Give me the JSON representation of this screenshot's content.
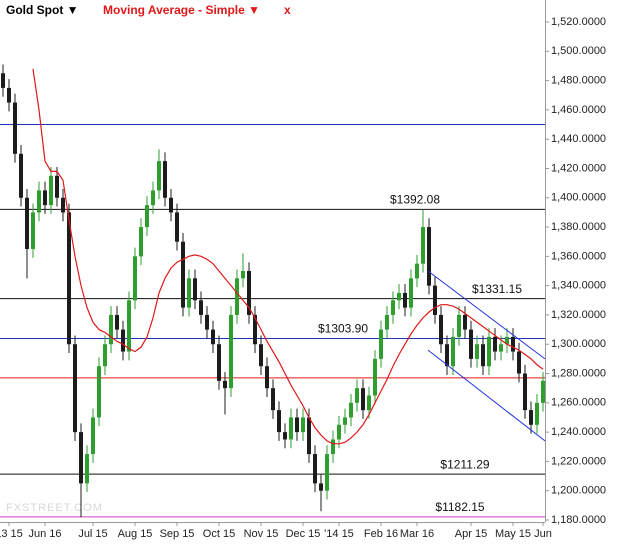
{
  "chart_data": {
    "type": "candlestick",
    "legend": [
      {
        "name": "Gold Spot ▼",
        "color": "#000000"
      },
      {
        "name": "Moving Average - Simple ▼",
        "color": "#e01818"
      },
      {
        "name": "x",
        "color": "#e01818"
      }
    ],
    "watermark": "FXSTREET.COM",
    "categories": [
      null,
      "13 15",
      null,
      null,
      null,
      null,
      null,
      "Jun 16",
      null,
      null,
      null,
      null,
      null,
      null,
      null,
      "Jul 15",
      null,
      null,
      null,
      null,
      null,
      null,
      "Aug 15",
      null,
      null,
      null,
      null,
      null,
      null,
      "Sep 15",
      null,
      null,
      null,
      null,
      null,
      null,
      "Oct 15",
      null,
      null,
      null,
      null,
      null,
      null,
      "Nov 15",
      null,
      null,
      null,
      null,
      null,
      null,
      "Dec 15",
      null,
      null,
      null,
      null,
      null,
      "'14 15",
      null,
      null,
      null,
      null,
      null,
      null,
      "Feb 16",
      null,
      null,
      null,
      null,
      null,
      "Mar 16",
      null,
      null,
      null,
      null,
      null,
      null,
      null,
      null,
      "Apr 15",
      null,
      null,
      null,
      null,
      null,
      null,
      "May 15",
      null,
      null,
      null,
      null,
      "Jun"
    ],
    "open": [
      1485,
      1475,
      1465,
      1430,
      1400,
      1365,
      1390,
      1405,
      1395,
      1415,
      1400,
      1390,
      1300,
      1240,
      1205,
      1225,
      1250,
      1285,
      1300,
      1320,
      1310,
      1295,
      1330,
      1360,
      1380,
      1395,
      1405,
      1425,
      1400,
      1390,
      1370,
      1325,
      1345,
      1330,
      1320,
      1310,
      1300,
      1275,
      1270,
      1320,
      1345,
      1350,
      1320,
      1300,
      1285,
      1270,
      1255,
      1240,
      1235,
      1250,
      1240,
      1250,
      1225,
      1205,
      1200,
      1225,
      1235,
      1245,
      1250,
      1260,
      1270,
      1255,
      1265,
      1290,
      1310,
      1320,
      1330,
      1335,
      1325,
      1345,
      1355,
      1380,
      1340,
      1320,
      1300,
      1285,
      1305,
      1320,
      1310,
      1290,
      1300,
      1285,
      1305,
      1295,
      1300,
      1305,
      1295,
      1280,
      1255,
      1245,
      1260
    ],
    "high": [
      1491,
      1481,
      1471,
      1436,
      1406,
      1396,
      1411,
      1411,
      1421,
      1421,
      1406,
      1396,
      1306,
      1246,
      1231,
      1256,
      1291,
      1306,
      1326,
      1326,
      1316,
      1336,
      1366,
      1386,
      1401,
      1411,
      1433,
      1431,
      1406,
      1396,
      1376,
      1351,
      1351,
      1336,
      1326,
      1316,
      1306,
      1281,
      1326,
      1351,
      1362,
      1356,
      1326,
      1306,
      1291,
      1276,
      1261,
      1246,
      1256,
      1256,
      1256,
      1256,
      1231,
      1211,
      1231,
      1241,
      1251,
      1256,
      1266,
      1276,
      1276,
      1271,
      1296,
      1316,
      1326,
      1336,
      1341,
      1341,
      1351,
      1361,
      1392,
      1386,
      1346,
      1326,
      1306,
      1311,
      1326,
      1326,
      1316,
      1306,
      1306,
      1311,
      1311,
      1306,
      1311,
      1311,
      1301,
      1286,
      1261,
      1266,
      1281
    ],
    "low": [
      1469,
      1459,
      1424,
      1394,
      1345,
      1359,
      1384,
      1389,
      1389,
      1394,
      1384,
      1294,
      1234,
      1182,
      1199,
      1219,
      1244,
      1279,
      1294,
      1304,
      1289,
      1289,
      1324,
      1354,
      1374,
      1389,
      1399,
      1394,
      1384,
      1364,
      1319,
      1319,
      1324,
      1314,
      1304,
      1294,
      1269,
      1252,
      1264,
      1314,
      1339,
      1314,
      1294,
      1279,
      1264,
      1249,
      1234,
      1229,
      1229,
      1234,
      1234,
      1219,
      1199,
      1186,
      1194,
      1219,
      1229,
      1239,
      1244,
      1254,
      1249,
      1249,
      1259,
      1284,
      1304,
      1314,
      1324,
      1319,
      1319,
      1339,
      1349,
      1334,
      1314,
      1294,
      1279,
      1279,
      1299,
      1304,
      1284,
      1284,
      1279,
      1279,
      1289,
      1289,
      1294,
      1289,
      1274,
      1249,
      1239,
      1239,
      1254
    ],
    "close": [
      1475,
      1465,
      1430,
      1400,
      1365,
      1390,
      1405,
      1395,
      1415,
      1400,
      1390,
      1300,
      1240,
      1205,
      1225,
      1250,
      1285,
      1300,
      1320,
      1310,
      1295,
      1330,
      1360,
      1380,
      1395,
      1405,
      1425,
      1400,
      1390,
      1370,
      1325,
      1345,
      1330,
      1320,
      1310,
      1300,
      1275,
      1270,
      1320,
      1345,
      1350,
      1320,
      1300,
      1285,
      1270,
      1255,
      1240,
      1235,
      1250,
      1240,
      1250,
      1225,
      1205,
      1200,
      1225,
      1235,
      1245,
      1250,
      1260,
      1270,
      1255,
      1265,
      1290,
      1310,
      1320,
      1330,
      1335,
      1325,
      1345,
      1355,
      1380,
      1340,
      1320,
      1300,
      1285,
      1305,
      1320,
      1310,
      1290,
      1300,
      1285,
      1305,
      1295,
      1300,
      1305,
      1295,
      1280,
      1255,
      1245,
      1260,
      1275
    ],
    "up_color": "#2f9e2f",
    "down_color": "#1c1c1c",
    "moving_average": {
      "color": "#e01818",
      "values": [
        null,
        null,
        null,
        null,
        null,
        1488,
        1460,
        1425,
        1418,
        1418,
        1412,
        1385,
        1360,
        1340,
        1325,
        1315,
        1310,
        1308,
        1305,
        1302,
        1300,
        1297,
        1295,
        1298,
        1305,
        1318,
        1335,
        1345,
        1352,
        1356,
        1358,
        1360,
        1361,
        1360,
        1358,
        1355,
        1350,
        1345,
        1340,
        1335,
        1330,
        1325,
        1318,
        1310,
        1302,
        1295,
        1288,
        1280,
        1272,
        1265,
        1258,
        1250,
        1243,
        1238,
        1234,
        1232,
        1232,
        1233,
        1236,
        1240,
        1245,
        1252,
        1260,
        1268,
        1276,
        1285,
        1293,
        1300,
        1307,
        1313,
        1318,
        1322,
        1325,
        1327,
        1327,
        1326,
        1324,
        1321,
        1318,
        1315,
        1312,
        1309,
        1306,
        1303,
        1300,
        1298,
        1296,
        1293,
        1290,
        1286,
        1283
      ]
    },
    "levels": [
      {
        "value": 1450,
        "color": "#2233bb"
      },
      {
        "value": 1392.08,
        "label": "$1392.08",
        "color": "#111111"
      },
      {
        "value": 1331.15,
        "label": "$1331.15",
        "color": "#111111"
      },
      {
        "value": 1303.9,
        "label": "$1303.90",
        "color": "#2233bb"
      },
      {
        "value": 1277,
        "color": "#e01818"
      },
      {
        "value": 1211.29,
        "label": "$1211.29",
        "color": "#111111"
      },
      {
        "value": 1182.15,
        "label": "$1182.15",
        "color": "#d040c0"
      }
    ],
    "trendlines": [
      {
        "values": [
          1350,
          1290
        ],
        "color": "#2233dd"
      },
      {
        "values": [
          1296,
          1234
        ],
        "color": "#2233dd"
      }
    ],
    "ylim": [
      1180,
      1520
    ],
    "yticks": [
      {
        "value": 1180,
        "label": "1,180.0000"
      },
      {
        "value": 1200,
        "label": "1,200.0000"
      },
      {
        "value": 1220,
        "label": "1,220.0000"
      },
      {
        "value": 1240,
        "label": "1,240.0000"
      },
      {
        "value": 1260,
        "label": "1,260.0000"
      },
      {
        "value": 1280,
        "label": "1,280.0000"
      },
      {
        "value": 1300,
        "label": "1,300.0000"
      },
      {
        "value": 1320,
        "label": "1,320.0000"
      },
      {
        "value": 1340,
        "label": "1,340.0000"
      },
      {
        "value": 1360,
        "label": "1,360.0000"
      },
      {
        "value": 1380,
        "label": "1,380.0000"
      },
      {
        "value": 1400,
        "label": "1,400.0000"
      },
      {
        "value": 1420,
        "label": "1,420.0000"
      },
      {
        "value": 1440,
        "label": "1,440.0000"
      },
      {
        "value": 1460,
        "label": "1,460.0000"
      },
      {
        "value": 1480,
        "label": "1,480.0000"
      },
      {
        "value": 1500,
        "label": "1,500.0000"
      },
      {
        "value": 1520,
        "label": "1,520.0000"
      }
    ]
  }
}
